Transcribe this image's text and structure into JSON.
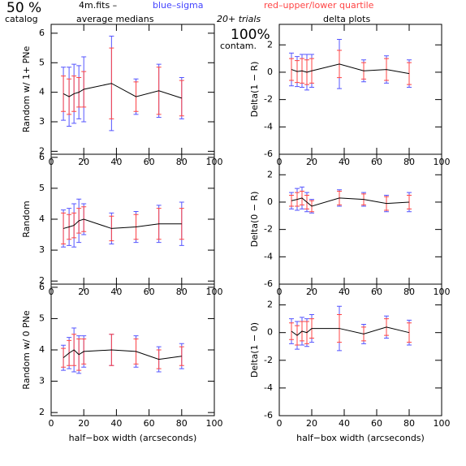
{
  "header": {
    "percent": "50 %",
    "catalog": "catalog",
    "file": "4m.fits  –",
    "medians": "average medians",
    "sigma": "blue–sigma",
    "quartile": "red–upper/lower quartile",
    "trials": "20+ trials",
    "delta": "delta plots",
    "contam_pct": "100%",
    "contam": "contam.",
    "sigma_color": "#4444ff",
    "quartile_color": "#ff4444"
  },
  "chart_data": [
    {
      "type": "errorbar",
      "ylabel": "Random w/ 1+ PNe",
      "x": [
        7.5,
        11,
        14,
        17,
        20,
        37,
        52,
        66,
        80
      ],
      "values": [
        3.95,
        3.85,
        3.95,
        4.0,
        4.1,
        4.3,
        3.85,
        4.05,
        3.8
      ],
      "color": "#000000",
      "sigma": {
        "color": "#5555ff",
        "values": [
          0.9,
          1.0,
          1.0,
          0.9,
          1.1,
          1.6,
          0.6,
          0.9,
          0.7
        ]
      },
      "quartile": {
        "color": "#ff4444",
        "values": [
          0.6,
          0.6,
          0.6,
          0.5,
          0.6,
          1.2,
          0.5,
          0.8,
          0.6
        ]
      },
      "xlim": [
        0,
        100
      ],
      "xticks": [
        0,
        20,
        40,
        60,
        80,
        100
      ],
      "ylim": [
        1.9,
        6.3
      ],
      "yticks": [
        2,
        3,
        4,
        5,
        6
      ]
    },
    {
      "type": "errorbar",
      "ylabel": "Delta(1 − R)",
      "x": [
        7.5,
        11,
        14,
        17,
        20,
        37,
        52,
        66,
        80
      ],
      "values": [
        0.2,
        0.05,
        0.1,
        0.0,
        0.1,
        0.6,
        0.1,
        0.2,
        -0.1
      ],
      "color": "#000000",
      "sigma": {
        "color": "#5555ff",
        "values": [
          1.2,
          1.1,
          1.2,
          1.3,
          1.2,
          1.8,
          0.8,
          1.0,
          1.0
        ]
      },
      "quartile": {
        "color": "#ff4444",
        "values": [
          0.8,
          0.8,
          0.9,
          0.9,
          0.9,
          1.0,
          0.6,
          0.8,
          0.8
        ]
      },
      "xlim": [
        0,
        100
      ],
      "xticks": [
        0,
        20,
        40,
        60,
        80,
        100
      ],
      "ylim": [
        -6,
        3.5
      ],
      "yticks": [
        -6,
        -4,
        -2,
        0,
        2
      ]
    },
    {
      "type": "errorbar",
      "ylabel": "Random",
      "x": [
        7.5,
        11,
        14,
        17,
        20,
        37,
        52,
        66,
        80
      ],
      "values": [
        3.7,
        3.75,
        3.8,
        3.95,
        4.0,
        3.7,
        3.75,
        3.85,
        3.85
      ],
      "color": "#000000",
      "sigma": {
        "color": "#5555ff",
        "values": [
          0.6,
          0.6,
          0.7,
          0.7,
          0.5,
          0.5,
          0.5,
          0.6,
          0.7
        ]
      },
      "quartile": {
        "color": "#ff4444",
        "values": [
          0.5,
          0.4,
          0.4,
          0.4,
          0.4,
          0.4,
          0.4,
          0.5,
          0.5
        ]
      },
      "xlim": [
        0,
        100
      ],
      "xticks": [
        0,
        20,
        40,
        60,
        80,
        100
      ],
      "ylim": [
        1.9,
        6.1
      ],
      "yticks": [
        2,
        3,
        4,
        5,
        6
      ]
    },
    {
      "type": "errorbar",
      "ylabel": "Delta(0 − R)",
      "x": [
        7.5,
        11,
        14,
        17,
        20,
        37,
        52,
        66,
        80
      ],
      "values": [
        0.1,
        0.2,
        0.3,
        0.0,
        -0.3,
        0.3,
        0.2,
        -0.1,
        0.0
      ],
      "color": "#000000",
      "sigma": {
        "color": "#5555ff",
        "values": [
          0.6,
          0.8,
          0.8,
          0.7,
          0.5,
          0.6,
          0.5,
          0.6,
          0.7
        ]
      },
      "quartile": {
        "color": "#ff4444",
        "values": [
          0.4,
          0.5,
          0.5,
          0.5,
          0.4,
          0.5,
          0.4,
          0.5,
          0.5
        ]
      },
      "xlim": [
        0,
        100
      ],
      "xticks": [
        0,
        20,
        40,
        60,
        80,
        100
      ],
      "ylim": [
        -6,
        3.5
      ],
      "yticks": [
        -6,
        -4,
        -2,
        0,
        2
      ]
    },
    {
      "type": "errorbar",
      "ylabel": "Random w/ 0 PNe",
      "xlabel": "half−box width (arcseconds)",
      "x": [
        7.5,
        11,
        14,
        17,
        20,
        37,
        52,
        66,
        80
      ],
      "values": [
        3.75,
        3.9,
        4.0,
        3.85,
        3.95,
        4.0,
        3.95,
        3.7,
        3.8
      ],
      "color": "#000000",
      "sigma": {
        "color": "#5555ff",
        "values": [
          0.4,
          0.5,
          0.7,
          0.6,
          0.5,
          0.5,
          0.5,
          0.4,
          0.4
        ]
      },
      "quartile": {
        "color": "#ff4444",
        "values": [
          0.3,
          0.4,
          0.5,
          0.5,
          0.4,
          0.5,
          0.4,
          0.3,
          0.3
        ]
      },
      "xlim": [
        0,
        100
      ],
      "xticks": [
        0,
        20,
        40,
        60,
        80,
        100
      ],
      "ylim": [
        1.9,
        6.1
      ],
      "yticks": [
        2,
        3,
        4,
        5,
        6
      ]
    },
    {
      "type": "errorbar",
      "ylabel": "Delta(1 − 0)",
      "xlabel": "half−box width (arcseconds)",
      "x": [
        7.5,
        11,
        14,
        17,
        20,
        37,
        52,
        66,
        80
      ],
      "values": [
        0.1,
        -0.2,
        0.1,
        0.0,
        0.3,
        0.3,
        -0.1,
        0.4,
        0.0
      ],
      "color": "#000000",
      "sigma": {
        "color": "#5555ff",
        "values": [
          0.9,
          1.0,
          1.0,
          1.0,
          1.0,
          1.6,
          0.7,
          0.8,
          0.9
        ]
      },
      "quartile": {
        "color": "#ff4444",
        "values": [
          0.6,
          0.7,
          0.7,
          0.8,
          0.7,
          1.0,
          0.5,
          0.6,
          0.7
        ]
      },
      "xlim": [
        0,
        100
      ],
      "xticks": [
        0,
        20,
        40,
        60,
        80,
        100
      ],
      "ylim": [
        -6,
        3.5
      ],
      "yticks": [
        -6,
        -4,
        -2,
        0,
        2
      ]
    }
  ]
}
